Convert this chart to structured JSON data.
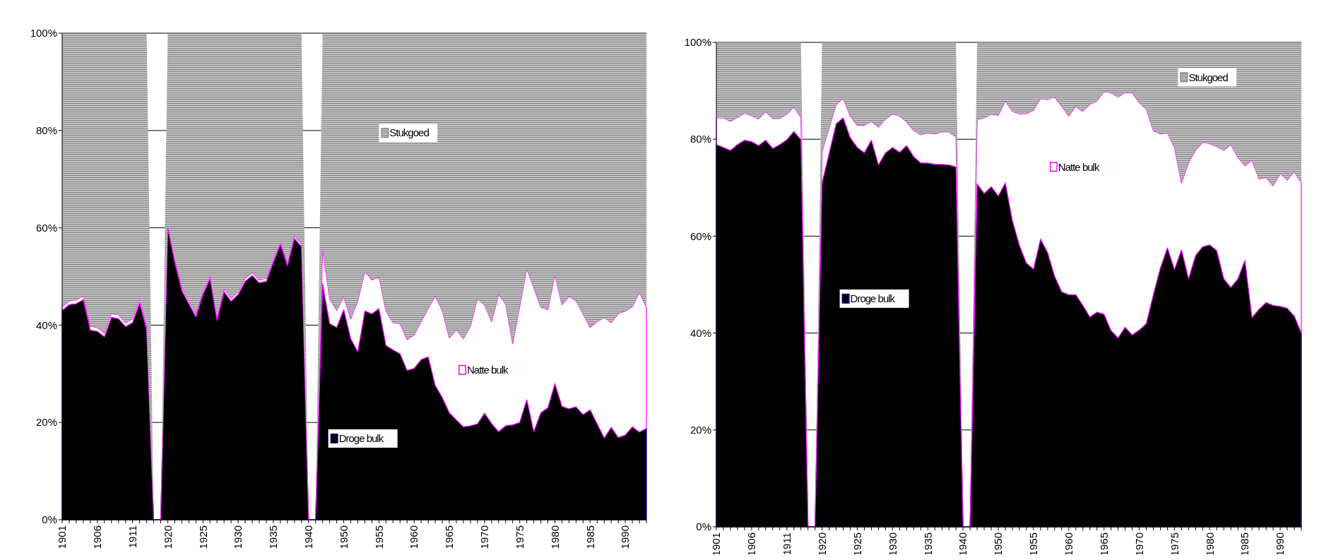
{
  "chart_data": [
    {
      "type": "area",
      "stacked": true,
      "grid": "y",
      "legend": "center",
      "ylim": [
        0,
        100
      ],
      "yticks": [
        {
          "value": 0,
          "label": "0%"
        },
        {
          "value": 20,
          "label": "20%"
        },
        {
          "value": 40,
          "label": "40%"
        },
        {
          "value": 60,
          "label": "60%"
        },
        {
          "value": 80,
          "label": "80%"
        },
        {
          "value": 100,
          "label": "100%"
        }
      ],
      "categories": [
        "1901",
        null,
        null,
        null,
        null,
        "1906",
        null,
        null,
        null,
        null,
        "1911",
        null,
        null,
        null,
        null,
        "1920",
        null,
        null,
        null,
        null,
        "1925",
        null,
        null,
        null,
        null,
        "1930",
        null,
        null,
        null,
        null,
        "1935",
        null,
        null,
        null,
        null,
        "1940",
        null,
        null,
        null,
        null,
        "1950",
        null,
        null,
        null,
        null,
        "1955",
        null,
        null,
        null,
        null,
        "1960",
        null,
        null,
        null,
        null,
        "1965",
        null,
        null,
        null,
        null,
        "1970",
        null,
        null,
        null,
        null,
        "1975",
        null,
        null,
        null,
        null,
        "1980",
        null,
        null,
        null,
        null,
        "1985",
        null,
        null,
        null,
        null,
        "1990",
        null,
        null,
        null
      ],
      "series": [
        {
          "name": "Droge bulk",
          "color": "#000000",
          "values": [
            43,
            44.2,
            44.4,
            45.2,
            39,
            38.7,
            37.6,
            41.6,
            41.3,
            39.7,
            40.5,
            44.6,
            39.1,
            0,
            0,
            59.9,
            52.9,
            47.1,
            44.4,
            41.7,
            46.3,
            49.6,
            41,
            46.9,
            44.9,
            46.3,
            49,
            50.2,
            48.7,
            49,
            52.9,
            56.6,
            52.2,
            57.8,
            56.1,
            0,
            0,
            48.5,
            40.3,
            39.5,
            43.2,
            37.2,
            34.5,
            42.9,
            42.3,
            43.4,
            35.8,
            34.9,
            34.1,
            30.7,
            31.1,
            32.9,
            33.5,
            27.6,
            25.1,
            22,
            20.5,
            19.1,
            19.3,
            19.7,
            21.9,
            19.8,
            18.1,
            19.3,
            19.5,
            20,
            24.7,
            18.1,
            22,
            23,
            28,
            23.3,
            22.8,
            23.2,
            21.6,
            22.6,
            19.7,
            16.8,
            19,
            16.9,
            17.4,
            19.1,
            18,
            18.8
          ]
        },
        {
          "name": "Natte bulk",
          "color": "#ffffff",
          "values": [
            0.8,
            0.8,
            0.8,
            0.8,
            0.8,
            0.8,
            0.8,
            0.8,
            0.8,
            0.8,
            0.8,
            0.8,
            0.8,
            0,
            0,
            0.6,
            0.6,
            0.6,
            0.6,
            0.6,
            0.6,
            0.6,
            0.6,
            0.6,
            0.6,
            0.6,
            0.6,
            0.6,
            0.6,
            0.6,
            0.6,
            0.6,
            0.6,
            0.6,
            0.6,
            0,
            0,
            7.1,
            5.1,
            3.5,
            2.6,
            4.1,
            10.5,
            8.1,
            7,
            6.5,
            7.1,
            5.6,
            6.2,
            6.3,
            6.9,
            7.8,
            9.9,
            18.4,
            17.9,
            15.4,
            18.6,
            18.1,
            20.5,
            25.7,
            22.3,
            20.9,
            28.2,
            25.1,
            16.7,
            23.8,
            26.9,
            29.6,
            21.7,
            20.2,
            22.3,
            20.9,
            23.1,
            21.8,
            20.7,
            16.9,
            21,
            24.8,
            21.5,
            25.5,
            25.5,
            24.7,
            28.7,
            24.9
          ]
        },
        {
          "name": "Stukgoed",
          "color": "#c0c0c0",
          "values": [
            56.2,
            55,
            54.8,
            54,
            60.2,
            60.5,
            61.6,
            57.6,
            57.9,
            59.5,
            58.7,
            54.6,
            60.1,
            0,
            0,
            39.5,
            46.5,
            52.3,
            55,
            57.7,
            53.1,
            49.8,
            58.4,
            52.5,
            54.5,
            53.1,
            50.4,
            49.2,
            50.7,
            50.4,
            46.5,
            42.8,
            47.2,
            41.6,
            43.3,
            0,
            0,
            44.4,
            54.6,
            57,
            54.2,
            58.7,
            55,
            49,
            50.7,
            50.1,
            57.1,
            59.5,
            59.7,
            63,
            62,
            59.3,
            56.6,
            54,
            57,
            62.6,
            60.9,
            62.8,
            60.2,
            54.6,
            55.8,
            59.3,
            53.7,
            55.6,
            63.8,
            56.2,
            48.4,
            52.3,
            56.3,
            56.8,
            49.7,
            55.8,
            54.1,
            55,
            57.7,
            60.5,
            59.3,
            58.4,
            59.5,
            57.6,
            57.1,
            56.2,
            53.3,
            56.3
          ]
        }
      ]
    },
    {
      "type": "area",
      "stacked": true,
      "grid": "y",
      "legend": "top",
      "ylim": [
        0,
        100
      ],
      "yticks": [
        {
          "value": 0,
          "label": "0%"
        },
        {
          "value": 20,
          "label": "20%"
        },
        {
          "value": 40,
          "label": "40%"
        },
        {
          "value": 60,
          "label": "60%"
        },
        {
          "value": 80,
          "label": "80%"
        },
        {
          "value": 100,
          "label": "100%"
        }
      ],
      "categories": [
        "1901",
        null,
        null,
        null,
        null,
        "1906",
        null,
        null,
        null,
        null,
        "1911",
        null,
        null,
        null,
        null,
        "1920",
        null,
        null,
        null,
        null,
        "1925",
        null,
        null,
        null,
        null,
        "1930",
        null,
        null,
        null,
        null,
        "1935",
        null,
        null,
        null,
        null,
        "1940",
        null,
        null,
        null,
        null,
        "1950",
        null,
        null,
        null,
        null,
        "1955",
        null,
        null,
        null,
        null,
        "1960",
        null,
        null,
        null,
        null,
        "1965",
        null,
        null,
        null,
        null,
        "1970",
        null,
        null,
        null,
        null,
        "1975",
        null,
        null,
        null,
        null,
        "1980",
        null,
        null,
        null,
        null,
        "1985",
        null,
        null,
        null,
        null,
        "1990",
        null,
        null,
        null
      ],
      "series": [
        {
          "name": "Droge bulk",
          "color": "#000000",
          "values": [
            78.9,
            78.3,
            77.7,
            78.9,
            79.8,
            79.5,
            78.7,
            79.8,
            78.1,
            78.9,
            79.9,
            81.6,
            79.9,
            0,
            0,
            71,
            77.1,
            83.2,
            84.4,
            80.3,
            78.3,
            77.2,
            79.8,
            74.7,
            77.2,
            78.3,
            77.3,
            78.7,
            76.4,
            75.1,
            75.1,
            74.8,
            74.8,
            74.7,
            74.3,
            0,
            0,
            70.8,
            68.8,
            70.2,
            68.3,
            71,
            63.2,
            58.1,
            54.4,
            53.2,
            59.4,
            56.6,
            51.7,
            48.5,
            47.9,
            47.9,
            45.7,
            43.3,
            44.3,
            43.9,
            40.5,
            39,
            41.2,
            39.6,
            40.6,
            41.9,
            47.9,
            53.4,
            57.6,
            53.1,
            57.2,
            51.2,
            56,
            57.8,
            58.2,
            57,
            51.2,
            49.4,
            51.2,
            55,
            43.2,
            44.9,
            46.3,
            45.7,
            45.5,
            45.1,
            43.5,
            40
          ]
        },
        {
          "name": "Natte bulk",
          "color": "#ffffff",
          "values": [
            5.5,
            6.1,
            6,
            5.6,
            5.6,
            5.4,
            5.5,
            5.9,
            6.2,
            5.4,
            5.3,
            5.1,
            4.6,
            0,
            0,
            6.5,
            5.2,
            4,
            4,
            4.5,
            4.6,
            5.7,
            3.9,
            7.8,
            7,
            6.9,
            7.5,
            4.9,
            5.4,
            5.8,
            6.2,
            6.3,
            6.7,
            6.8,
            6.2,
            0,
            0,
            13.3,
            15.6,
            15,
            16.6,
            16.9,
            22.6,
            27.1,
            30.9,
            32.8,
            29,
            31.6,
            37,
            38.3,
            36.9,
            38.9,
            40.1,
            43.9,
            43.6,
            45.9,
            49.1,
            49.7,
            48.4,
            50,
            47,
            44.3,
            33.9,
            27.7,
            23.7,
            25.2,
            13.8,
            23.9,
            21.7,
            21.6,
            20.9,
            21.5,
            26.5,
            29.5,
            25.1,
            19.5,
            32.5,
            26.9,
            25.8,
            24.7,
            27.4,
            26.5,
            29.8,
            31
          ]
        },
        {
          "name": "Stukgoed",
          "color": "#c0c0c0",
          "values": [
            15.6,
            15.6,
            16.3,
            15.5,
            14.6,
            15.1,
            15.8,
            14.3,
            15.7,
            15.7,
            14.8,
            13.3,
            15.5,
            0,
            0,
            22.5,
            17.7,
            12.8,
            11.6,
            15.2,
            17.1,
            17.1,
            16.3,
            17.5,
            15.8,
            14.8,
            15.2,
            16.4,
            18.2,
            19.1,
            18.7,
            18.9,
            18.5,
            18.5,
            19.5,
            0,
            0,
            15.9,
            15.6,
            14.8,
            15.1,
            12.1,
            14.2,
            14.8,
            14.7,
            14,
            11.6,
            11.8,
            11.3,
            13.2,
            15.2,
            13.2,
            14.2,
            12.8,
            12.1,
            10.2,
            10.4,
            11.3,
            10.4,
            10.4,
            12.4,
            13.8,
            18.2,
            18.9,
            18.7,
            21.7,
            29,
            24.9,
            22.3,
            20.6,
            20.9,
            21.5,
            22.3,
            21.1,
            23.7,
            25.5,
            24.3,
            28.2,
            27.9,
            29.6,
            27.1,
            28.4,
            26.7,
            29
          ]
        }
      ]
    }
  ]
}
